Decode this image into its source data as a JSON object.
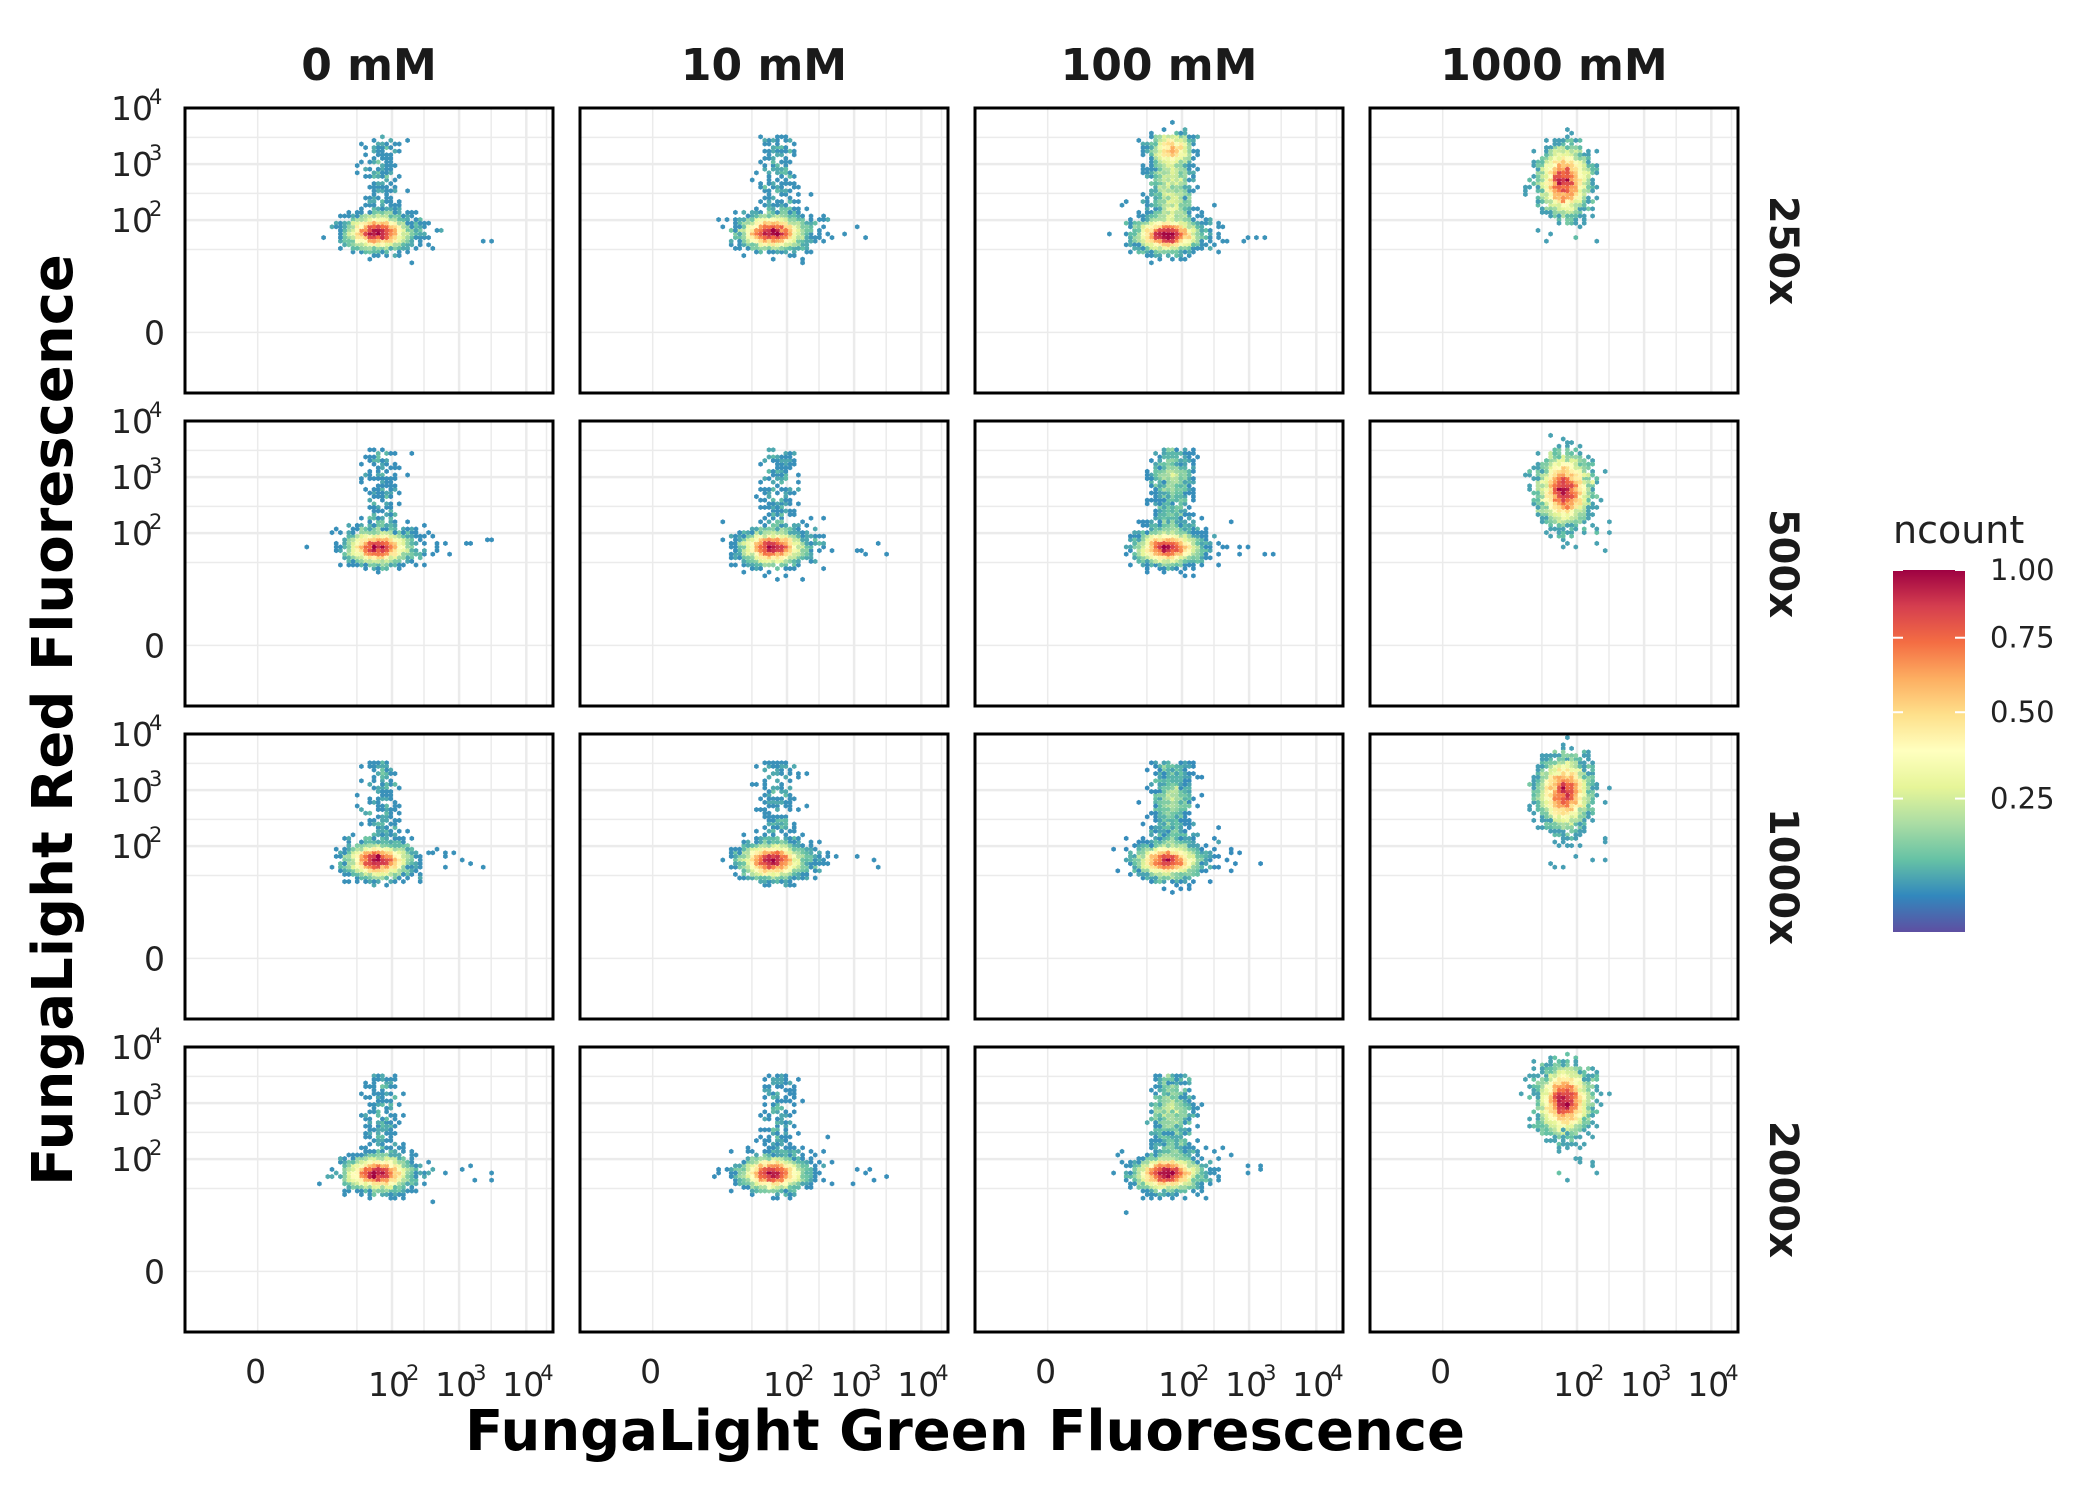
{
  "chart_data": {
    "type": "heatmap",
    "subtype": "faceted hexbin density",
    "xlabel": "FungaLight Green Fluorescence",
    "ylabel": "FungaLight Red Fluorescence",
    "x_scale": "pseudo-log",
    "y_scale": "pseudo-log",
    "x_ticks": [
      {
        "value": 0,
        "label": "0"
      },
      {
        "value": 100,
        "base": "10",
        "exp": "2"
      },
      {
        "value": 1000,
        "base": "10",
        "exp": "3"
      },
      {
        "value": 10000,
        "base": "10",
        "exp": "4"
      }
    ],
    "y_ticks": [
      {
        "value": 0,
        "label": "0"
      },
      {
        "value": 100,
        "base": "10",
        "exp": "2"
      },
      {
        "value": 1000,
        "base": "10",
        "exp": "3"
      },
      {
        "value": 10000,
        "base": "10",
        "exp": "4"
      }
    ],
    "xlim": [
      0,
      25000
    ],
    "ylim": [
      0,
      10000
    ],
    "columns": [
      "0 mM",
      "10 mM",
      "100 mM",
      "1000 mM"
    ],
    "rows": [
      "250x",
      "500x",
      "1000x",
      "2000x"
    ],
    "legend": {
      "title": "ncount",
      "position": "right",
      "ticks": [
        "1.00",
        "0.75",
        "0.50",
        "0.25"
      ],
      "tick_values": [
        1.0,
        0.75,
        0.5,
        0.25
      ]
    },
    "colormap": [
      "#5e4fa2",
      "#3288bd",
      "#66c2a5",
      "#abdda4",
      "#e6f598",
      "#ffffbf",
      "#fee08b",
      "#fdae61",
      "#f46d43",
      "#d53e4f",
      "#9e0142"
    ],
    "grid": true,
    "panels": [
      {
        "row": "250x",
        "col": "0 mM",
        "main": {
          "x": 60,
          "y": 60
        },
        "upper": {
          "x": 70,
          "y": 1500,
          "level": "sparse"
        }
      },
      {
        "row": "250x",
        "col": "10 mM",
        "main": {
          "x": 60,
          "y": 60
        },
        "upper": {
          "x": 75,
          "y": 900,
          "level": "sparse"
        }
      },
      {
        "row": "250x",
        "col": "100 mM",
        "main": {
          "x": 60,
          "y": 55
        },
        "upper": {
          "x": 70,
          "y": 1800,
          "level": "dense"
        }
      },
      {
        "row": "250x",
        "col": "1000 mM",
        "main": {
          "x": 65,
          "y": 500
        }
      },
      {
        "row": "500x",
        "col": "0 mM",
        "main": {
          "x": 60,
          "y": 55
        },
        "upper": {
          "x": 70,
          "y": 1200,
          "level": "sparse"
        }
      },
      {
        "row": "500x",
        "col": "10 mM",
        "main": {
          "x": 60,
          "y": 55
        },
        "upper": {
          "x": 75,
          "y": 1200,
          "level": "sparse"
        }
      },
      {
        "row": "500x",
        "col": "100 mM",
        "main": {
          "x": 60,
          "y": 55
        },
        "upper": {
          "x": 70,
          "y": 1200,
          "level": "medium"
        }
      },
      {
        "row": "500x",
        "col": "1000 mM",
        "main": {
          "x": 65,
          "y": 600
        }
      },
      {
        "row": "1000x",
        "col": "0 mM",
        "main": {
          "x": 60,
          "y": 55
        },
        "upper": {
          "x": 70,
          "y": 900,
          "level": "sparse"
        }
      },
      {
        "row": "1000x",
        "col": "10 mM",
        "main": {
          "x": 60,
          "y": 55
        },
        "upper": {
          "x": 75,
          "y": 700,
          "level": "sparse"
        }
      },
      {
        "row": "1000x",
        "col": "100 mM",
        "main": {
          "x": 60,
          "y": 55
        },
        "upper": {
          "x": 70,
          "y": 900,
          "level": "medium"
        }
      },
      {
        "row": "1000x",
        "col": "1000 mM",
        "main": {
          "x": 65,
          "y": 900
        }
      },
      {
        "row": "2000x",
        "col": "0 mM",
        "main": {
          "x": 60,
          "y": 55
        },
        "upper": {
          "x": 70,
          "y": 1200,
          "level": "sparse"
        }
      },
      {
        "row": "2000x",
        "col": "10 mM",
        "main": {
          "x": 60,
          "y": 55
        },
        "upper": {
          "x": 75,
          "y": 900,
          "level": "sparse"
        }
      },
      {
        "row": "2000x",
        "col": "100 mM",
        "main": {
          "x": 60,
          "y": 55
        },
        "upper": {
          "x": 70,
          "y": 900,
          "level": "medium"
        }
      },
      {
        "row": "2000x",
        "col": "1000 mM",
        "main": {
          "x": 65,
          "y": 1100
        }
      }
    ]
  }
}
